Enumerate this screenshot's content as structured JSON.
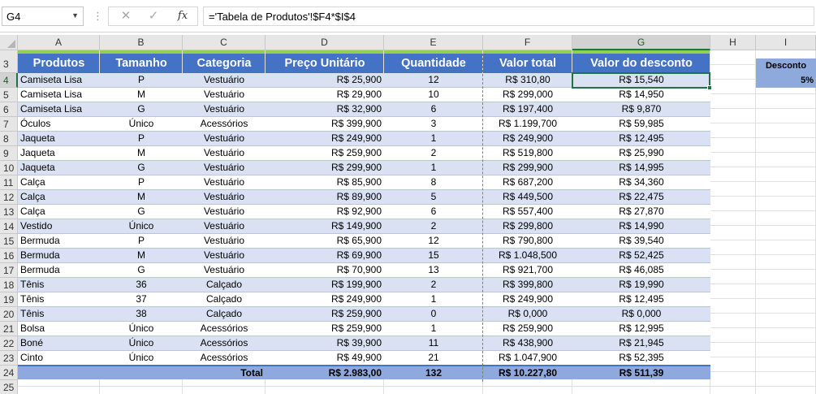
{
  "formula_bar": {
    "name_box": "G4",
    "formula": "='Tabela de Produtos'!$F4*$I$4"
  },
  "columns": [
    "A",
    "B",
    "C",
    "D",
    "E",
    "F",
    "G",
    "H",
    "I"
  ],
  "selected_column": "G",
  "rows": [
    "3",
    "4",
    "5",
    "6",
    "7",
    "8",
    "9",
    "10",
    "11",
    "12",
    "13",
    "14",
    "15",
    "16",
    "17",
    "18",
    "19",
    "20",
    "21",
    "22",
    "23",
    "24",
    "25"
  ],
  "selected_row": "4",
  "table": {
    "headers": [
      "Produtos",
      "Tamanho",
      "Categoria",
      "Preço Unitário",
      "Quantidade",
      "Valor total",
      "Valor do desconto"
    ],
    "data": [
      [
        "Camiseta Lisa",
        "P",
        "Vestuário",
        "R$ 25,900",
        "12",
        "R$ 310,80",
        "R$ 15,540"
      ],
      [
        "Camiseta Lisa",
        "M",
        "Vestuário",
        "R$ 29,900",
        "10",
        "R$ 299,000",
        "R$ 14,950"
      ],
      [
        "Camiseta Lisa",
        "G",
        "Vestuário",
        "R$ 32,900",
        "6",
        "R$ 197,400",
        "R$ 9,870"
      ],
      [
        "Óculos",
        "Único",
        "Acessórios",
        "R$ 399,900",
        "3",
        "R$ 1.199,700",
        "R$ 59,985"
      ],
      [
        "Jaqueta",
        "P",
        "Vestuário",
        "R$ 249,900",
        "1",
        "R$ 249,900",
        "R$ 12,495"
      ],
      [
        "Jaqueta",
        "M",
        "Vestuário",
        "R$ 259,900",
        "2",
        "R$ 519,800",
        "R$ 25,990"
      ],
      [
        "Jaqueta",
        "G",
        "Vestuário",
        "R$ 299,900",
        "1",
        "R$ 299,900",
        "R$ 14,995"
      ],
      [
        "Calça",
        "P",
        "Vestuário",
        "R$ 85,900",
        "8",
        "R$ 687,200",
        "R$ 34,360"
      ],
      [
        "Calça",
        "M",
        "Vestuário",
        "R$ 89,900",
        "5",
        "R$ 449,500",
        "R$ 22,475"
      ],
      [
        "Calça",
        "G",
        "Vestuário",
        "R$ 92,900",
        "6",
        "R$ 557,400",
        "R$ 27,870"
      ],
      [
        "Vestido",
        "Único",
        "Vestuário",
        "R$ 149,900",
        "2",
        "R$ 299,800",
        "R$ 14,990"
      ],
      [
        "Bermuda",
        "P",
        "Vestuário",
        "R$ 65,900",
        "12",
        "R$ 790,800",
        "R$ 39,540"
      ],
      [
        "Bermuda",
        "M",
        "Vestuário",
        "R$ 69,900",
        "15",
        "R$ 1.048,500",
        "R$ 52,425"
      ],
      [
        "Bermuda",
        "G",
        "Vestuário",
        "R$ 70,900",
        "13",
        "R$ 921,700",
        "R$ 46,085"
      ],
      [
        "Tênis",
        "36",
        "Calçado",
        "R$ 199,900",
        "2",
        "R$ 399,800",
        "R$ 19,990"
      ],
      [
        "Tênis",
        "37",
        "Calçado",
        "R$ 249,900",
        "1",
        "R$ 249,900",
        "R$ 12,495"
      ],
      [
        "Tênis",
        "38",
        "Calçado",
        "R$ 259,900",
        "0",
        "R$ 0,000",
        "R$ 0,000"
      ],
      [
        "Bolsa",
        "Único",
        "Acessórios",
        "R$ 259,900",
        "1",
        "R$ 259,900",
        "R$ 12,995"
      ],
      [
        "Boné",
        "Único",
        "Acessórios",
        "R$ 39,900",
        "11",
        "R$ 438,900",
        "R$ 21,945"
      ],
      [
        "Cinto",
        "Único",
        "Acessórios",
        "R$ 49,900",
        "21",
        "R$ 1.047,900",
        "R$ 52,395"
      ]
    ],
    "total": {
      "label": "Total",
      "preco": "R$ 2.983,00",
      "quantidade": "132",
      "valor_total": "R$ 10.227,80",
      "desconto": "R$ 511,39"
    }
  },
  "discount": {
    "label": "Desconto",
    "value": "5%"
  },
  "colors": {
    "header_fill": "#4472c4",
    "band_fill": "#d9e1f2",
    "total_fill": "#8ea9db",
    "accent_strip": "#92d050",
    "selection": "#217346"
  }
}
